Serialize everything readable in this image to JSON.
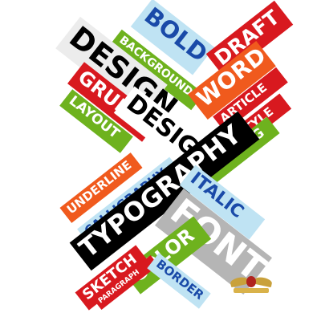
{
  "words": {
    "bold": "BOLD",
    "draft": "DRAFT",
    "design": "DESIGN",
    "background": "BACKGROUND",
    "word": "WORD",
    "grunge": "GRUNGE",
    "article": "ARTICLE",
    "style": "STYLE",
    "layout": "LAYOUT",
    "design2": "DESIGN",
    "padding": "PADDING",
    "underline": "UNDERLINE",
    "calligraphy": "CALLIGRAPHY",
    "typography": "TYPOGRAPHY",
    "italic": "ITALIC",
    "font": "FONT",
    "color": "COLOR",
    "sketch": "SKETCH",
    "paragraph": "PARAGRAPH",
    "border": "BORDER"
  },
  "colors": {
    "red": "#d8191f",
    "orange": "#f05a1d",
    "green": "#6eb21e",
    "light_blue": "#bfe3f3",
    "blue_text": "#1a4aa8",
    "black": "#000000",
    "gray": "#b5b5b5"
  },
  "watermark": {
    "icon": "winged-emblem-icon"
  }
}
